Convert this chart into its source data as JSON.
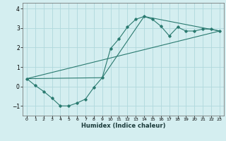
{
  "xlabel": "Humidex (Indice chaleur)",
  "bg_color": "#d4eef0",
  "grid_color": "#b0d8dc",
  "line_color": "#2a7a70",
  "marker_color": "#2a7a70",
  "xlim": [
    -0.5,
    23.5
  ],
  "ylim": [
    -1.5,
    4.3
  ],
  "yticks": [
    -1,
    0,
    1,
    2,
    3,
    4
  ],
  "xticks": [
    0,
    1,
    2,
    3,
    4,
    5,
    6,
    7,
    8,
    9,
    10,
    11,
    12,
    13,
    14,
    15,
    16,
    17,
    18,
    19,
    20,
    21,
    22,
    23
  ],
  "line1_x": [
    0,
    1,
    2,
    3,
    4,
    5,
    6,
    7,
    8,
    9,
    10,
    11,
    12,
    13,
    14,
    15,
    16,
    17,
    18,
    19,
    20,
    21,
    22,
    23
  ],
  "line1_y": [
    0.4,
    0.05,
    -0.25,
    -0.6,
    -1.0,
    -1.0,
    -0.85,
    -0.65,
    -0.05,
    0.45,
    1.95,
    2.45,
    3.05,
    3.45,
    3.6,
    3.45,
    3.1,
    2.6,
    3.05,
    2.85,
    2.85,
    2.95,
    2.95,
    2.85
  ],
  "line2_x": [
    0,
    9,
    14,
    23
  ],
  "line2_y": [
    0.4,
    0.45,
    3.6,
    2.85
  ],
  "line3_x": [
    0,
    23
  ],
  "line3_y": [
    0.4,
    2.85
  ]
}
